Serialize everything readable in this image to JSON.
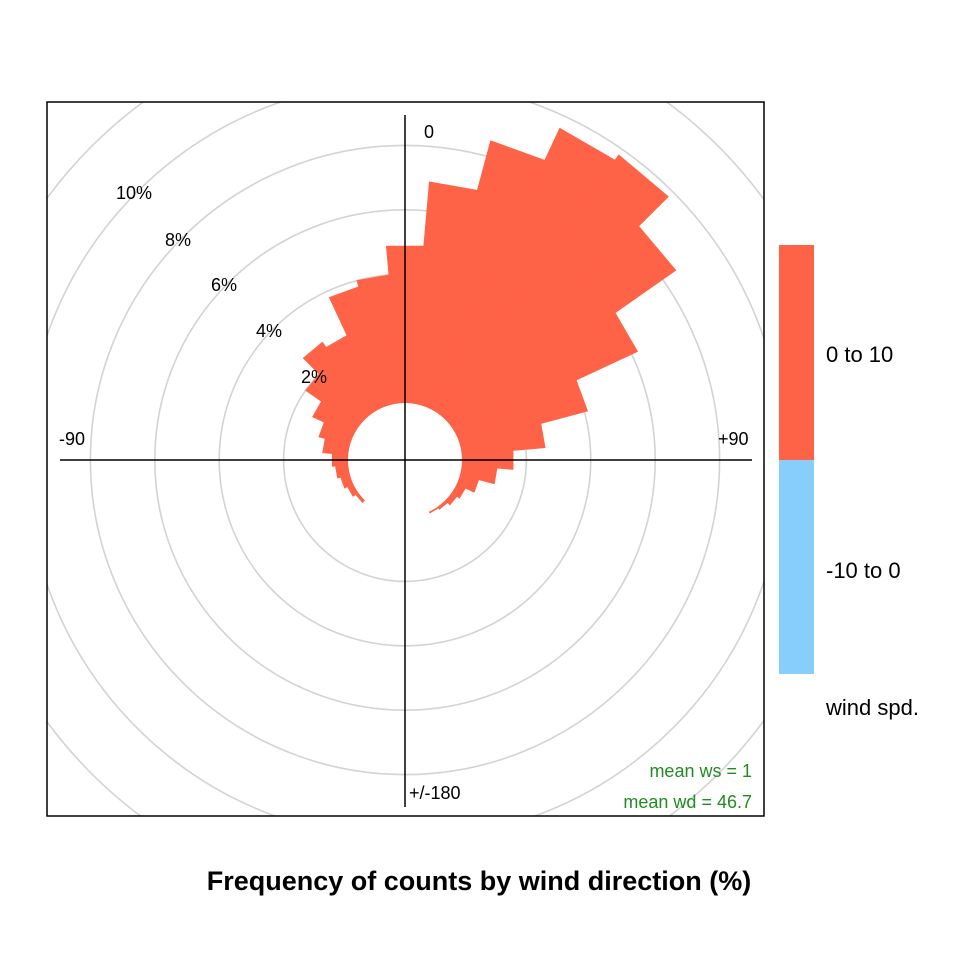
{
  "chart_data": {
    "type": "polar-bar",
    "title": "Frequency of counts by wind direction (%)",
    "direction_labels": [
      "0",
      "+90",
      "+/-180",
      "-90"
    ],
    "radial_ticks": [
      {
        "value": 2,
        "label": "2%"
      },
      {
        "value": 4,
        "label": "4%"
      },
      {
        "value": 6,
        "label": "6%"
      },
      {
        "value": 8,
        "label": "8%"
      },
      {
        "value": 10,
        "label": "10%"
      }
    ],
    "series": [
      {
        "name": "0 to 10",
        "color": "#FF6347"
      },
      {
        "name": "-10 to 0",
        "color": "#87CEFA"
      }
    ],
    "legend_title": "wind spd.",
    "bin_width_deg": 10,
    "bins": [
      {
        "wd": 0,
        "pct": 4.9
      },
      {
        "wd": 10,
        "pct": 6.9
      },
      {
        "wd": 20,
        "pct": 8.5
      },
      {
        "wd": 30,
        "pct": 9.6
      },
      {
        "wd": 40,
        "pct": 9.8
      },
      {
        "wd": 50,
        "pct": 8.5
      },
      {
        "wd": 60,
        "pct": 6.2
      },
      {
        "wd": 70,
        "pct": 4.1
      },
      {
        "wd": 80,
        "pct": 2.6
      },
      {
        "wd": 90,
        "pct": 1.6
      },
      {
        "wd": 100,
        "pct": 1.1
      },
      {
        "wd": 110,
        "pct": 0.6
      },
      {
        "wd": 120,
        "pct": 0.3
      },
      {
        "wd": 130,
        "pct": 0.2
      },
      {
        "wd": 140,
        "pct": 0.1
      },
      {
        "wd": 150,
        "pct": 0.05
      },
      {
        "wd": 230,
        "pct": 0.1
      },
      {
        "wd": 240,
        "pct": 0.2
      },
      {
        "wd": 250,
        "pct": 0.3
      },
      {
        "wd": 260,
        "pct": 0.4
      },
      {
        "wd": 270,
        "pct": 0.5
      },
      {
        "wd": 280,
        "pct": 0.8
      },
      {
        "wd": 290,
        "pct": 1.0
      },
      {
        "wd": 300,
        "pct": 1.4
      },
      {
        "wd": 310,
        "pct": 2.0
      },
      {
        "wd": 320,
        "pct": 2.7
      },
      {
        "wd": 330,
        "pct": 2.5
      },
      {
        "wd": 340,
        "pct": 3.8
      },
      {
        "wd": 350,
        "pct": 4.0
      }
    ],
    "stats": {
      "mean_ws_label": "mean ws =  1",
      "mean_wd_label": "mean wd =  46.7",
      "color": "#228B22"
    },
    "grid": true,
    "grid_color": "#D3D3D3",
    "r_max": 10
  }
}
